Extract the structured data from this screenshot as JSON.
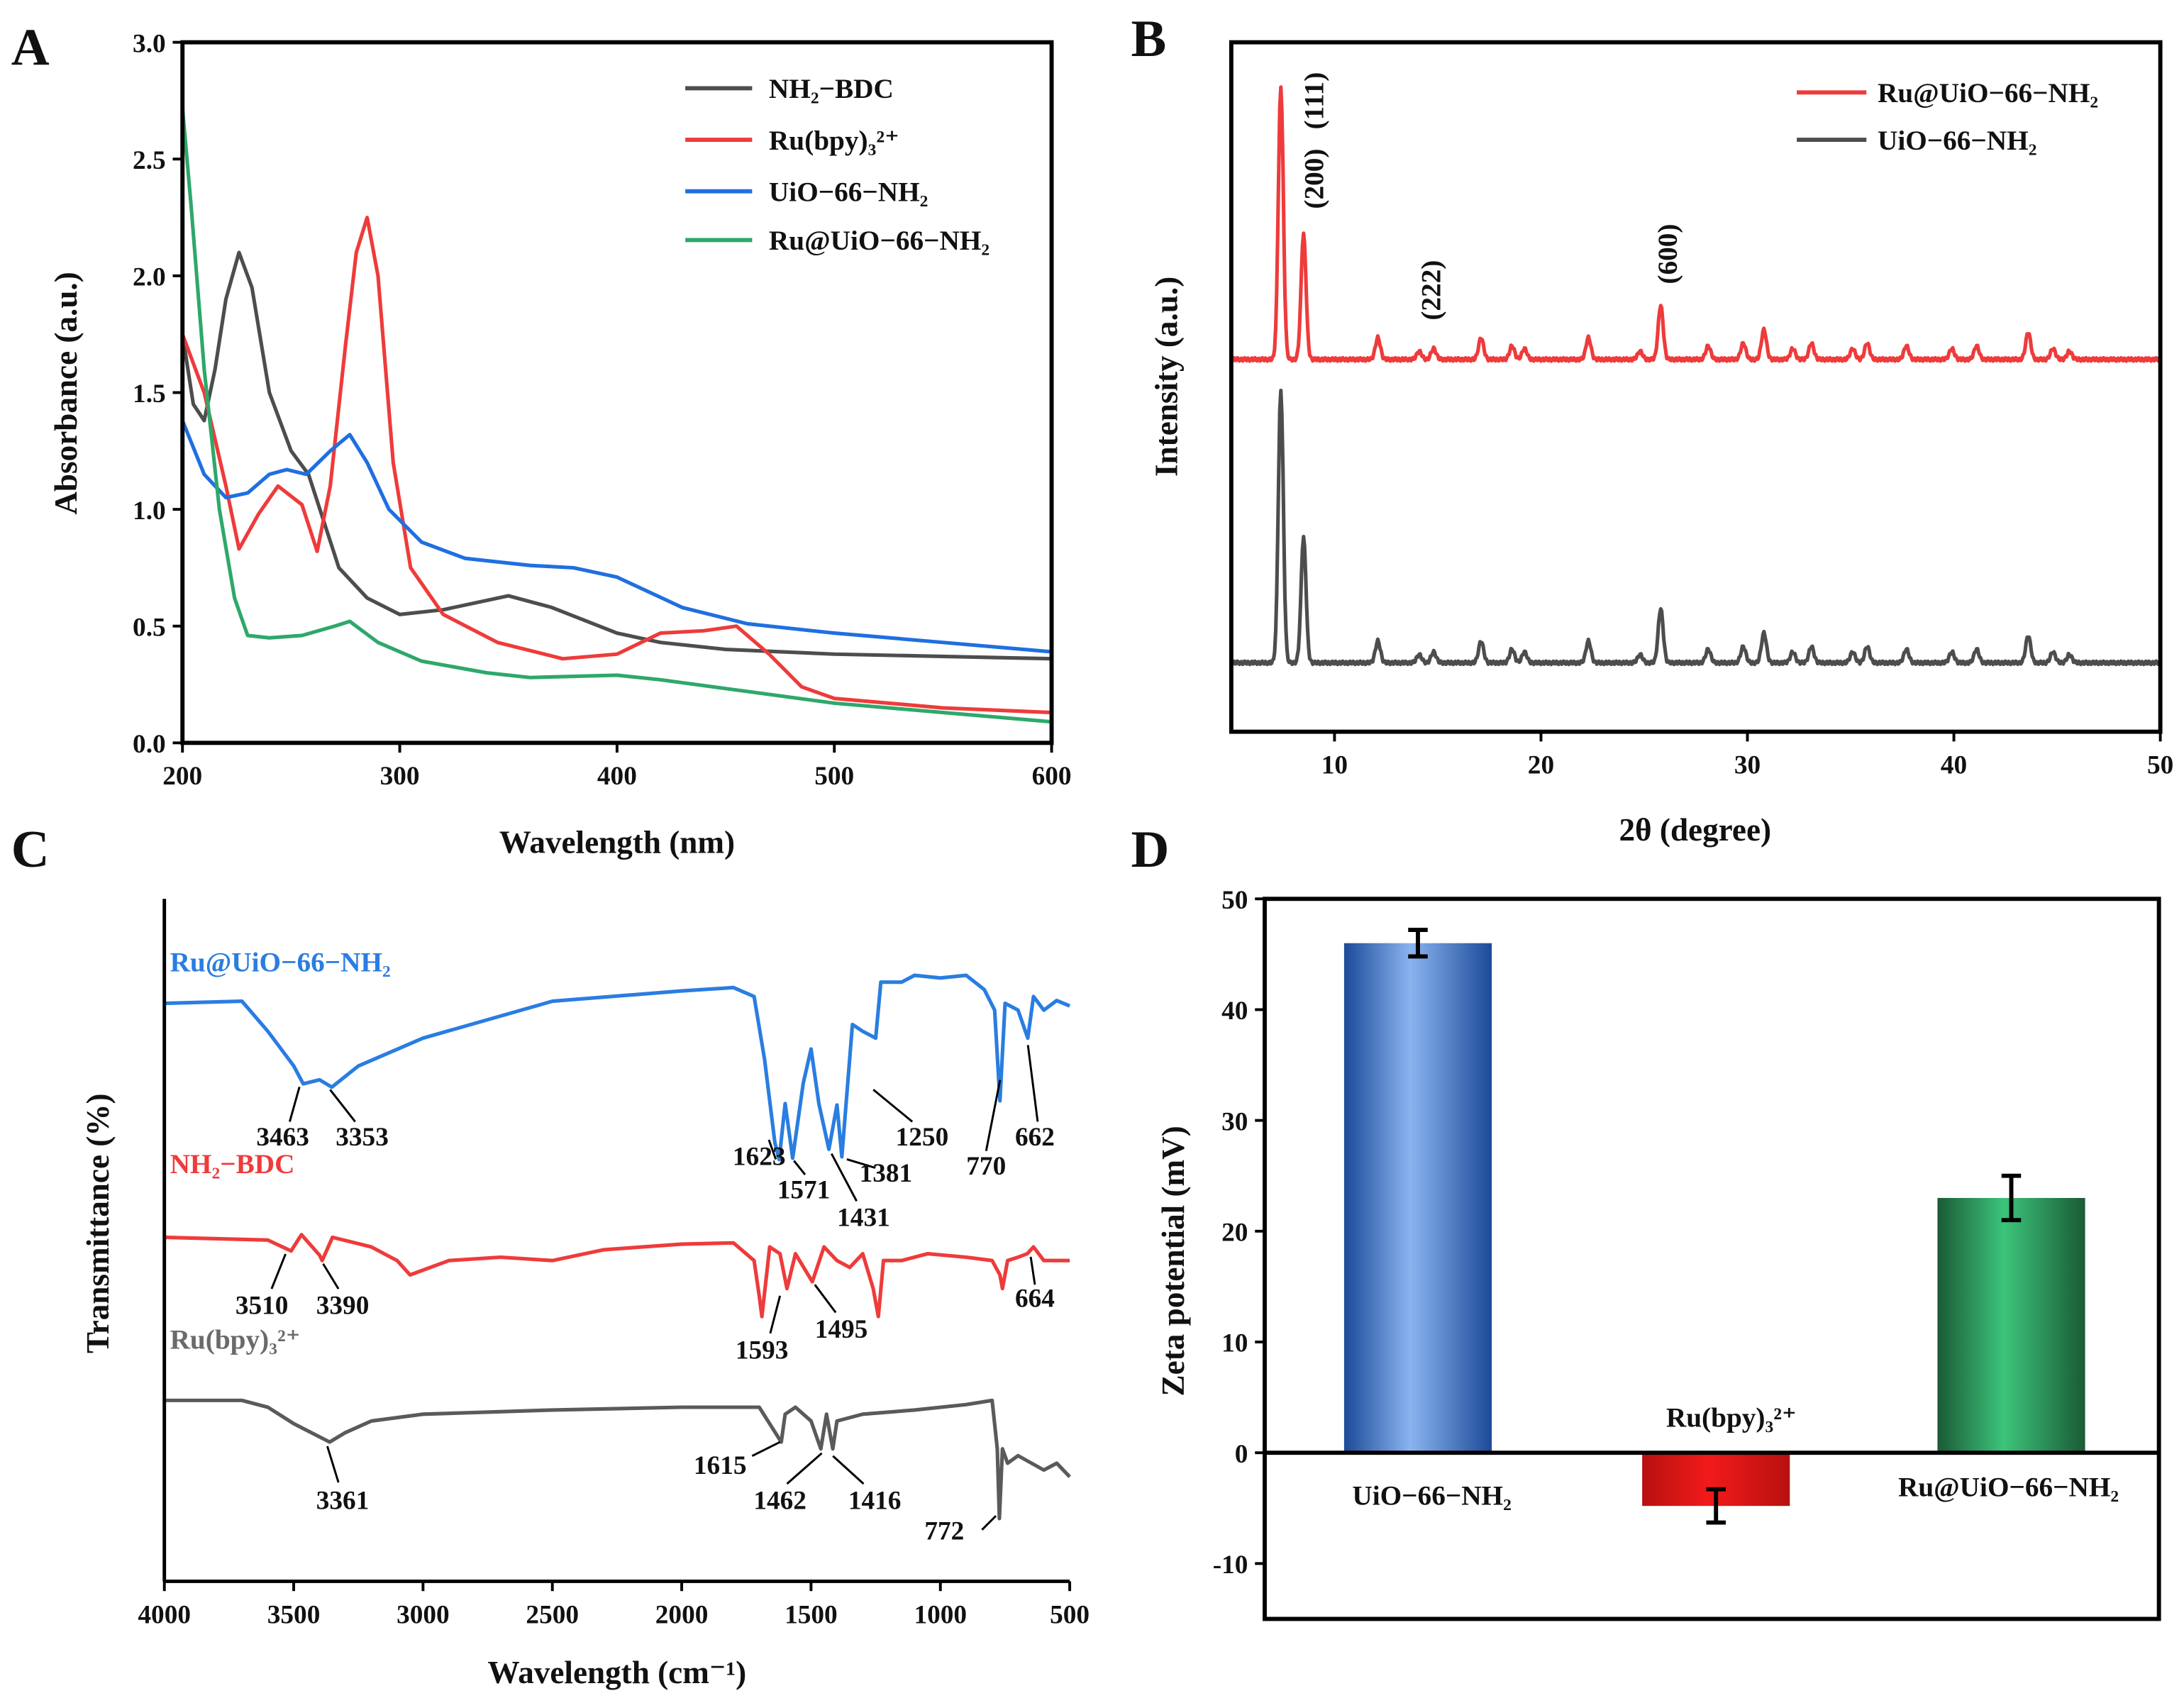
{
  "panels": {
    "a": "A",
    "b": "B",
    "c": "C",
    "d": "D"
  },
  "chart_data": [
    {
      "id": "A",
      "type": "line",
      "xlabel": "Wavelength (nm)",
      "ylabel": "Absorbance (a.u.)",
      "xlim": [
        200,
        600
      ],
      "ylim": [
        0,
        3
      ],
      "xticks": [
        "200",
        "300",
        "400",
        "500",
        "600"
      ],
      "yticks": [
        "0.0",
        "0.5",
        "1.0",
        "1.5",
        "2.0",
        "2.5",
        "3.0"
      ],
      "legend_position": "top-right",
      "series": [
        {
          "name": "NH₂−BDC",
          "color": "#4d4d4d",
          "points": [
            [
              200,
              1.75
            ],
            [
              205,
              1.45
            ],
            [
              210,
              1.38
            ],
            [
              215,
              1.6
            ],
            [
              220,
              1.9
            ],
            [
              226,
              2.1
            ],
            [
              232,
              1.95
            ],
            [
              240,
              1.5
            ],
            [
              250,
              1.25
            ],
            [
              258,
              1.15
            ],
            [
              265,
              0.95
            ],
            [
              272,
              0.75
            ],
            [
              285,
              0.62
            ],
            [
              300,
              0.55
            ],
            [
              320,
              0.57
            ],
            [
              350,
              0.63
            ],
            [
              370,
              0.58
            ],
            [
              400,
              0.47
            ],
            [
              420,
              0.43
            ],
            [
              450,
              0.4
            ],
            [
              500,
              0.38
            ],
            [
              600,
              0.36
            ]
          ]
        },
        {
          "name": "Ru(bpy)₃²⁺",
          "color": "#ee3b3b",
          "points": [
            [
              200,
              1.75
            ],
            [
              210,
              1.5
            ],
            [
              220,
              1.1
            ],
            [
              226,
              0.83
            ],
            [
              235,
              0.98
            ],
            [
              244,
              1.1
            ],
            [
              255,
              1.02
            ],
            [
              262,
              0.82
            ],
            [
              268,
              1.1
            ],
            [
              275,
              1.7
            ],
            [
              280,
              2.1
            ],
            [
              285,
              2.25
            ],
            [
              290,
              2.0
            ],
            [
              297,
              1.2
            ],
            [
              305,
              0.75
            ],
            [
              320,
              0.55
            ],
            [
              345,
              0.43
            ],
            [
              375,
              0.36
            ],
            [
              400,
              0.38
            ],
            [
              420,
              0.47
            ],
            [
              440,
              0.48
            ],
            [
              455,
              0.5
            ],
            [
              470,
              0.38
            ],
            [
              485,
              0.24
            ],
            [
              500,
              0.19
            ],
            [
              550,
              0.15
            ],
            [
              600,
              0.13
            ]
          ]
        },
        {
          "name": "UiO−66−NH₂",
          "color": "#1f6fe0",
          "points": [
            [
              200,
              1.38
            ],
            [
              210,
              1.15
            ],
            [
              220,
              1.05
            ],
            [
              230,
              1.07
            ],
            [
              240,
              1.15
            ],
            [
              248,
              1.17
            ],
            [
              257,
              1.15
            ],
            [
              268,
              1.25
            ],
            [
              277,
              1.32
            ],
            [
              285,
              1.2
            ],
            [
              295,
              1.0
            ],
            [
              310,
              0.86
            ],
            [
              330,
              0.79
            ],
            [
              360,
              0.76
            ],
            [
              380,
              0.75
            ],
            [
              400,
              0.71
            ],
            [
              430,
              0.58
            ],
            [
              460,
              0.51
            ],
            [
              500,
              0.47
            ],
            [
              550,
              0.43
            ],
            [
              600,
              0.39
            ]
          ]
        },
        {
          "name": "Ru@UiO−66−NH₂",
          "color": "#2ea86a",
          "points": [
            [
              200,
              2.72
            ],
            [
              204,
              2.3
            ],
            [
              210,
              1.6
            ],
            [
              217,
              1.0
            ],
            [
              224,
              0.62
            ],
            [
              230,
              0.46
            ],
            [
              240,
              0.45
            ],
            [
              255,
              0.46
            ],
            [
              270,
              0.5
            ],
            [
              277,
              0.52
            ],
            [
              290,
              0.43
            ],
            [
              310,
              0.35
            ],
            [
              340,
              0.3
            ],
            [
              360,
              0.28
            ],
            [
              400,
              0.29
            ],
            [
              420,
              0.27
            ],
            [
              460,
              0.22
            ],
            [
              500,
              0.17
            ],
            [
              550,
              0.13
            ],
            [
              600,
              0.09
            ]
          ]
        }
      ]
    },
    {
      "id": "B",
      "type": "line",
      "xlabel": "2θ (degree)",
      "ylabel": "Intensity (a.u.)",
      "xlim": [
        5,
        50
      ],
      "ylim": [
        0,
        2.5
      ],
      "xticks": [
        "10",
        "20",
        "30",
        "40",
        "50"
      ],
      "legend_position": "top-right",
      "peaks": [
        [
          7.4,
          1.0
        ],
        [
          8.5,
          0.46
        ],
        [
          12.1,
          0.08
        ],
        [
          14.1,
          0.03
        ],
        [
          14.8,
          0.04
        ],
        [
          17.1,
          0.08
        ],
        [
          18.6,
          0.05
        ],
        [
          19.2,
          0.04
        ],
        [
          22.3,
          0.08
        ],
        [
          24.8,
          0.03
        ],
        [
          25.8,
          0.2
        ],
        [
          28.1,
          0.05
        ],
        [
          29.8,
          0.06
        ],
        [
          30.8,
          0.11
        ],
        [
          32.2,
          0.04
        ],
        [
          33.1,
          0.06
        ],
        [
          35.1,
          0.04
        ],
        [
          35.8,
          0.06
        ],
        [
          37.7,
          0.05
        ],
        [
          39.9,
          0.04
        ],
        [
          41.1,
          0.05
        ],
        [
          43.6,
          0.1
        ],
        [
          44.8,
          0.04
        ],
        [
          45.6,
          0.03
        ]
      ],
      "series": [
        {
          "name": "Ru@UiO−66−NH₂",
          "color": "#ee3b3b",
          "baseline": 1.35,
          "scale": 0.99
        },
        {
          "name": "UiO−66−NH₂",
          "color": "#4d4d4d",
          "baseline": 0.25,
          "scale": 0.99
        }
      ],
      "annotations": [
        "(200)",
        "(111)",
        "(222)",
        "(600)"
      ]
    },
    {
      "id": "C",
      "type": "line",
      "xlabel": "Wavelength (cm⁻¹)",
      "ylabel": "Transmittance (%)",
      "xlim": [
        4000,
        500
      ],
      "ylim": [
        0,
        100
      ],
      "xticks": [
        "4000",
        "3500",
        "3000",
        "2500",
        "2000",
        "1500",
        "1000",
        "500"
      ],
      "series": [
        {
          "name": "Ru@UiO−66−NH₂",
          "color": "#2a7de1",
          "points": [
            [
              4000,
              84.7
            ],
            [
              3700,
              85
            ],
            [
              3600,
              80.6
            ],
            [
              3500,
              75.5
            ],
            [
              3463,
              72.9
            ],
            [
              3400,
              73.5
            ],
            [
              3353,
              72.4
            ],
            [
              3250,
              75.5
            ],
            [
              3000,
              79.6
            ],
            [
              2500,
              85
            ],
            [
              2000,
              86.5
            ],
            [
              1800,
              87
            ],
            [
              1720,
              85.7
            ],
            [
              1680,
              76.5
            ],
            [
              1640,
              64.3
            ],
            [
              1623,
              61.8
            ],
            [
              1600,
              70
            ],
            [
              1571,
              62
            ],
            [
              1530,
              73
            ],
            [
              1500,
              78
            ],
            [
              1470,
              70
            ],
            [
              1431,
              63.3
            ],
            [
              1400,
              69.8
            ],
            [
              1381,
              62.2
            ],
            [
              1340,
              81.6
            ],
            [
              1300,
              80.6
            ],
            [
              1250,
              79.6
            ],
            [
              1230,
              87.8
            ],
            [
              1150,
              87.8
            ],
            [
              1100,
              88.8
            ],
            [
              1000,
              88.4
            ],
            [
              900,
              88.8
            ],
            [
              830,
              86.7
            ],
            [
              790,
              83.7
            ],
            [
              770,
              70.4
            ],
            [
              750,
              84.7
            ],
            [
              700,
              83.7
            ],
            [
              662,
              79.6
            ],
            [
              640,
              85.7
            ],
            [
              600,
              83.7
            ],
            [
              550,
              85.1
            ],
            [
              500,
              84.3
            ]
          ]
        },
        {
          "name": "NH₂−BDC",
          "color": "#ee3b3b",
          "points": [
            [
              4000,
              50.4
            ],
            [
              3600,
              50
            ],
            [
              3510,
              48.4
            ],
            [
              3470,
              50.8
            ],
            [
              3400,
              47.8
            ],
            [
              3390,
              47
            ],
            [
              3350,
              50.4
            ],
            [
              3200,
              49
            ],
            [
              3100,
              47
            ],
            [
              3050,
              44.9
            ],
            [
              2900,
              47
            ],
            [
              2700,
              47.5
            ],
            [
              2500,
              47
            ],
            [
              2300,
              48.6
            ],
            [
              2000,
              49.4
            ],
            [
              1800,
              49.6
            ],
            [
              1720,
              47
            ],
            [
              1700,
              41.8
            ],
            [
              1690,
              38.8
            ],
            [
              1660,
              49
            ],
            [
              1620,
              48
            ],
            [
              1593,
              42.9
            ],
            [
              1560,
              48
            ],
            [
              1495,
              43.9
            ],
            [
              1450,
              49
            ],
            [
              1400,
              47
            ],
            [
              1350,
              46
            ],
            [
              1300,
              48
            ],
            [
              1260,
              42.9
            ],
            [
              1240,
              38.8
            ],
            [
              1220,
              47
            ],
            [
              1150,
              47
            ],
            [
              1050,
              48
            ],
            [
              900,
              47.5
            ],
            [
              800,
              47
            ],
            [
              770,
              44.9
            ],
            [
              760,
              42.9
            ],
            [
              740,
              47
            ],
            [
              700,
              47.5
            ],
            [
              664,
              48
            ],
            [
              640,
              49
            ],
            [
              600,
              47
            ],
            [
              500,
              47
            ]
          ]
        },
        {
          "name": "Ru(bpy)₃²⁺",
          "color": "#5a5a5a",
          "points": [
            [
              4000,
              26.5
            ],
            [
              3700,
              26.5
            ],
            [
              3600,
              25.5
            ],
            [
              3500,
              23.1
            ],
            [
              3361,
              20.4
            ],
            [
              3300,
              21.8
            ],
            [
              3200,
              23.5
            ],
            [
              3000,
              24.5
            ],
            [
              2500,
              25.1
            ],
            [
              2000,
              25.5
            ],
            [
              1700,
              25.5
            ],
            [
              1615,
              20.4
            ],
            [
              1600,
              24.5
            ],
            [
              1560,
              25.5
            ],
            [
              1500,
              23.5
            ],
            [
              1462,
              19.4
            ],
            [
              1440,
              24.5
            ],
            [
              1416,
              19.4
            ],
            [
              1400,
              23.5
            ],
            [
              1300,
              24.5
            ],
            [
              1100,
              25.1
            ],
            [
              900,
              25.9
            ],
            [
              800,
              26.5
            ],
            [
              780,
              19.4
            ],
            [
              772,
              9.2
            ],
            [
              760,
              19.4
            ],
            [
              740,
              17.3
            ],
            [
              700,
              18.4
            ],
            [
              600,
              16.3
            ],
            [
              550,
              17.3
            ],
            [
              500,
              15.3
            ]
          ]
        }
      ],
      "annotations": [
        "3463",
        "3353",
        "1623",
        "1571",
        "1431",
        "1381",
        "1250",
        "770",
        "662",
        "3510",
        "3390",
        "1593",
        "1495",
        "664",
        "3361",
        "1615",
        "1462",
        "1416",
        "772"
      ]
    },
    {
      "id": "D",
      "type": "bar",
      "ylabel": "Zeta potential (mV)",
      "ylim": [
        -15,
        50
      ],
      "yticks": [
        "-10",
        "0",
        "10",
        "20",
        "30",
        "40",
        "50"
      ],
      "categories": [
        "UiO−66−NH₂",
        "Ru(bpy)₃²⁺",
        "Ru@UiO−66−NH₂"
      ],
      "values": [
        46,
        -4.8,
        23
      ],
      "errors": [
        1.2,
        1.5,
        2.0
      ],
      "colors": [
        [
          "#1c4a98",
          "#8ab4f0"
        ],
        [
          "#b81010",
          "#f21a1a"
        ],
        [
          "#1a5a36",
          "#3cc47a"
        ]
      ]
    }
  ]
}
